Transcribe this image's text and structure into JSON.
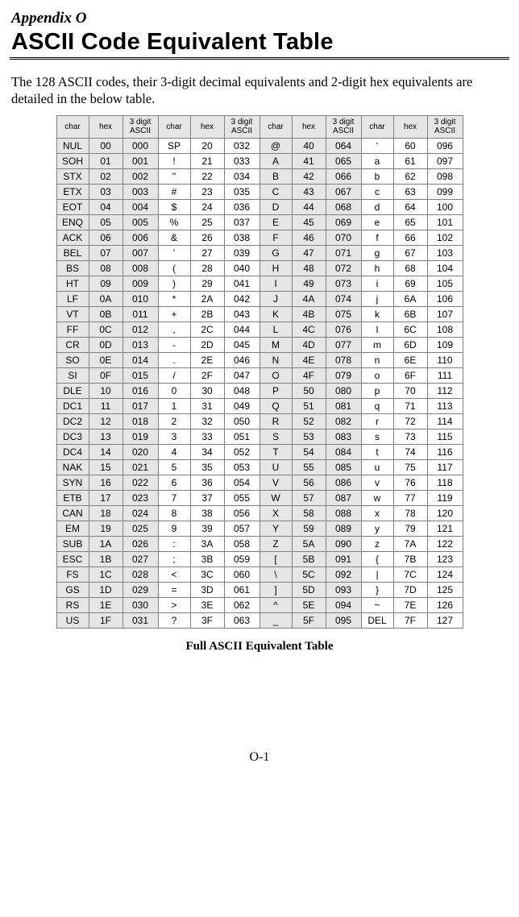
{
  "appendix_label": "Appendix O",
  "page_title": "ASCII Code Equivalent Table",
  "intro_text": "The 128 ASCII codes, their 3-digit decimal equivalents and 2-digit hex equivalents are detailed in the below table.",
  "caption": "Full ASCII Equivalent Table",
  "page_number": "O-1",
  "table": {
    "column_headers": [
      "char",
      "hex",
      "3 digit ASCII"
    ],
    "groups": 4,
    "col_widths": {
      "char": 40,
      "hex": 42,
      "ascii": 44
    },
    "shade_color": "#e6e6e6",
    "border_color": "#808080",
    "header_fontsize": 10,
    "body_fontsize": 12,
    "rows": [
      [
        "NUL",
        "00",
        "000",
        "SP",
        "20",
        "032",
        "@",
        "40",
        "064",
        "‘",
        "60",
        "096"
      ],
      [
        "SOH",
        "01",
        "001",
        "!",
        "21",
        "033",
        "A",
        "41",
        "065",
        "a",
        "61",
        "097"
      ],
      [
        "STX",
        "02",
        "002",
        "\"",
        "22",
        "034",
        "B",
        "42",
        "066",
        "b",
        "62",
        "098"
      ],
      [
        "ETX",
        "03",
        "003",
        "#",
        "23",
        "035",
        "C",
        "43",
        "067",
        "c",
        "63",
        "099"
      ],
      [
        "EOT",
        "04",
        "004",
        "$",
        "24",
        "036",
        "D",
        "44",
        "068",
        "d",
        "64",
        "100"
      ],
      [
        "ENQ",
        "05",
        "005",
        "%",
        "25",
        "037",
        "E",
        "45",
        "069",
        "e",
        "65",
        "101"
      ],
      [
        "ACK",
        "06",
        "006",
        "&",
        "26",
        "038",
        "F",
        "46",
        "070",
        "f",
        "66",
        "102"
      ],
      [
        "BEL",
        "07",
        "007",
        "'",
        "27",
        "039",
        "G",
        "47",
        "071",
        "g",
        "67",
        "103"
      ],
      [
        "BS",
        "08",
        "008",
        "(",
        "28",
        "040",
        "H",
        "48",
        "072",
        "h",
        "68",
        "104"
      ],
      [
        "HT",
        "09",
        "009",
        ")",
        "29",
        "041",
        "I",
        "49",
        "073",
        "i",
        "69",
        "105"
      ],
      [
        "LF",
        "0A",
        "010",
        "*",
        "2A",
        "042",
        "J",
        "4A",
        "074",
        "j",
        "6A",
        "106"
      ],
      [
        "VT",
        "0B",
        "011",
        "+",
        "2B",
        "043",
        "K",
        "4B",
        "075",
        "k",
        "6B",
        "107"
      ],
      [
        "FF",
        "0C",
        "012",
        ",",
        "2C",
        "044",
        "L",
        "4C",
        "076",
        "l",
        "6C",
        "108"
      ],
      [
        "CR",
        "0D",
        "013",
        "-",
        "2D",
        "045",
        "M",
        "4D",
        "077",
        "m",
        "6D",
        "109"
      ],
      [
        "SO",
        "0E",
        "014",
        ".",
        "2E",
        "046",
        "N",
        "4E",
        "078",
        "n",
        "6E",
        "110"
      ],
      [
        "SI",
        "0F",
        "015",
        "/",
        "2F",
        "047",
        "O",
        "4F",
        "079",
        "o",
        "6F",
        "111"
      ],
      [
        "DLE",
        "10",
        "016",
        "0",
        "30",
        "048",
        "P",
        "50",
        "080",
        "p",
        "70",
        "112"
      ],
      [
        "DC1",
        "11",
        "017",
        "1",
        "31",
        "049",
        "Q",
        "51",
        "081",
        "q",
        "71",
        "113"
      ],
      [
        "DC2",
        "12",
        "018",
        "2",
        "32",
        "050",
        "R",
        "52",
        "082",
        "r",
        "72",
        "114"
      ],
      [
        "DC3",
        "13",
        "019",
        "3",
        "33",
        "051",
        "S",
        "53",
        "083",
        "s",
        "73",
        "115"
      ],
      [
        "DC4",
        "14",
        "020",
        "4",
        "34",
        "052",
        "T",
        "54",
        "084",
        "t",
        "74",
        "116"
      ],
      [
        "NAK",
        "15",
        "021",
        "5",
        "35",
        "053",
        "U",
        "55",
        "085",
        "u",
        "75",
        "117"
      ],
      [
        "SYN",
        "16",
        "022",
        "6",
        "36",
        "054",
        "V",
        "56",
        "086",
        "v",
        "76",
        "118"
      ],
      [
        "ETB",
        "17",
        "023",
        "7",
        "37",
        "055",
        "W",
        "57",
        "087",
        "w",
        "77",
        "119"
      ],
      [
        "CAN",
        "18",
        "024",
        "8",
        "38",
        "056",
        "X",
        "58",
        "088",
        "x",
        "78",
        "120"
      ],
      [
        "EM",
        "19",
        "025",
        "9",
        "39",
        "057",
        "Y",
        "59",
        "089",
        "y",
        "79",
        "121"
      ],
      [
        "SUB",
        "1A",
        "026",
        ":",
        "3A",
        "058",
        "Z",
        "5A",
        "090",
        "z",
        "7A",
        "122"
      ],
      [
        "ESC",
        "1B",
        "027",
        ";",
        "3B",
        "059",
        "[",
        "5B",
        "091",
        "{",
        "7B",
        "123"
      ],
      [
        "FS",
        "1C",
        "028",
        "<",
        "3C",
        "060",
        "\\",
        "5C",
        "092",
        "|",
        "7C",
        "124"
      ],
      [
        "GS",
        "1D",
        "029",
        "=",
        "3D",
        "061",
        "]",
        "5D",
        "093",
        "}",
        "7D",
        "125"
      ],
      [
        "RS",
        "1E",
        "030",
        ">",
        "3E",
        "062",
        "^",
        "5E",
        "094",
        "~",
        "7E",
        "126"
      ],
      [
        "US",
        "1F",
        "031",
        "?",
        "3F",
        "063",
        "_",
        "5F",
        "095",
        "DEL",
        "7F",
        "127"
      ]
    ]
  }
}
